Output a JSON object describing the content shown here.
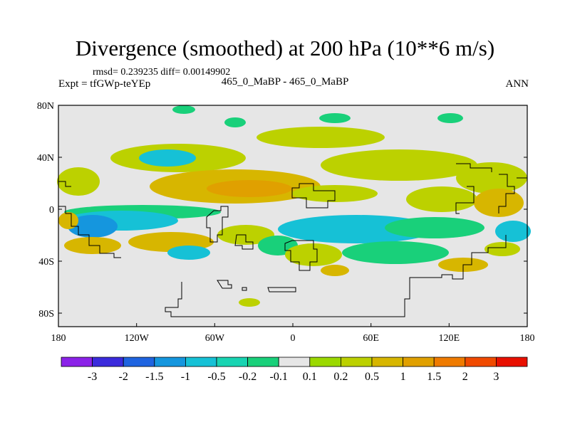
{
  "title": "Divergence (smoothed) at 200 hPa (10**6 m/s)",
  "stats": "rmsd= 0.239235 diff= 0.00149902",
  "expt": "Expt = tfGWp-teYEp",
  "cases": "465_0_MaBP - 465_0_MaBP",
  "season": "ANN",
  "map": {
    "y_labels": [
      "80N",
      "40N",
      "0",
      "40S",
      "80S"
    ],
    "x_labels": [
      "180",
      "120W",
      "60W",
      "0",
      "60E",
      "120E",
      "180"
    ]
  },
  "colorbar": {
    "colors": [
      "#8b22e8",
      "#3b2bdc",
      "#1f64e0",
      "#1596de",
      "#16c1d6",
      "#18d4b2",
      "#19d07a",
      "#e6e6e6",
      "#9bd900",
      "#bcd100",
      "#d7b600",
      "#e0a000",
      "#ef7b00",
      "#f04a00",
      "#e81000"
    ],
    "labels": [
      "-3",
      "-2",
      "-1.5",
      "-1",
      "-0.5",
      "-0.2",
      "-0.1",
      "0.1",
      "0.2",
      "0.5",
      "1",
      "1.5",
      "2",
      "3"
    ]
  },
  "colors": {
    "land_bg": "#e6e6e6",
    "strong_neg": "#16c1d6",
    "neg": "#19d07a",
    "weak_pos": "#bcd100",
    "pos": "#d7b600",
    "strong_pos": "#e0a000"
  }
}
